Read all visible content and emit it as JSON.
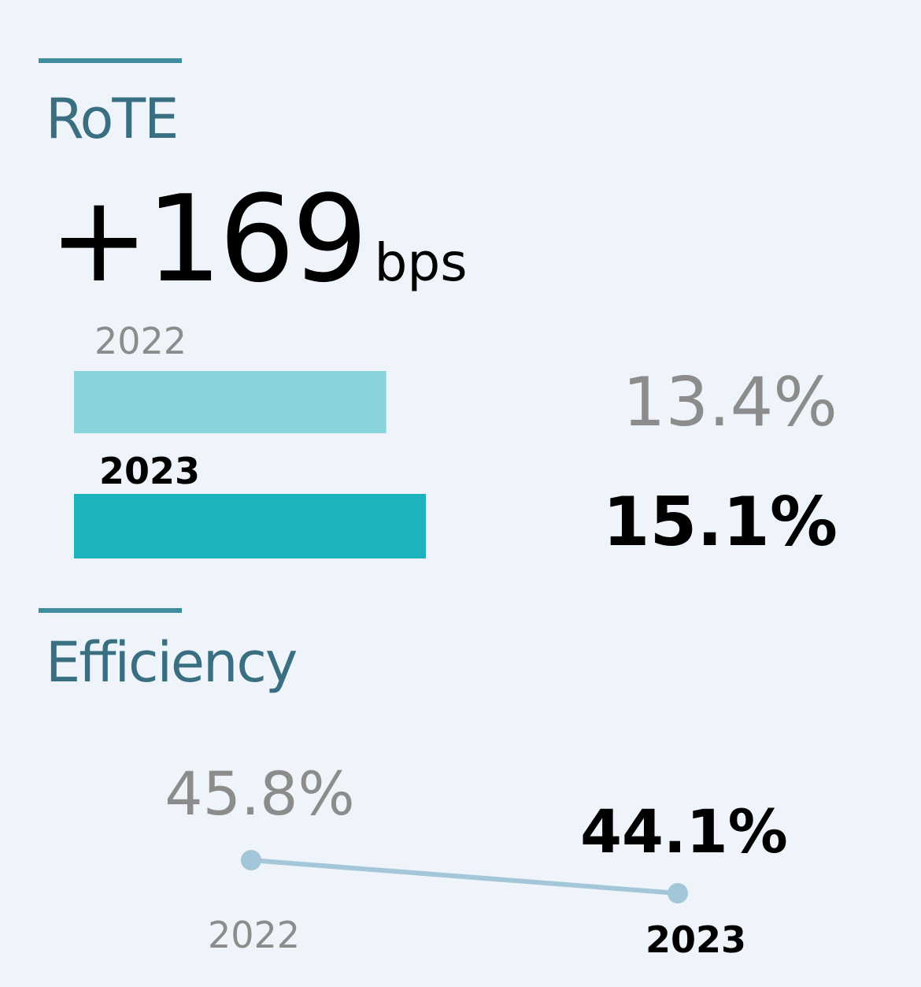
{
  "colors": {
    "background": "#eef4f9",
    "accent_rule": "#3e8c9e",
    "title": "#3a6f82",
    "bar_prev": "#89d4da",
    "bar_curr": "#1db3bd",
    "line": "#a3c6d8",
    "muted_text": "#8c8c8c",
    "strong_text": "#000000"
  },
  "rote": {
    "title": "RoTE",
    "change_value": "+169",
    "change_unit": "bps"
  },
  "efficiency": {
    "title": "Efficiency"
  },
  "chart_data": [
    {
      "type": "bar",
      "orientation": "horizontal",
      "title": "RoTE",
      "categories": [
        "2022",
        "2023"
      ],
      "values": [
        13.4,
        15.1
      ],
      "value_labels": [
        "13.4%",
        "15.1%"
      ],
      "unit": "%"
    },
    {
      "type": "line",
      "title": "Efficiency",
      "x": [
        "2022",
        "2023"
      ],
      "values": [
        45.8,
        44.1
      ],
      "value_labels": [
        "45.8%",
        "44.1%"
      ],
      "unit": "%"
    }
  ]
}
